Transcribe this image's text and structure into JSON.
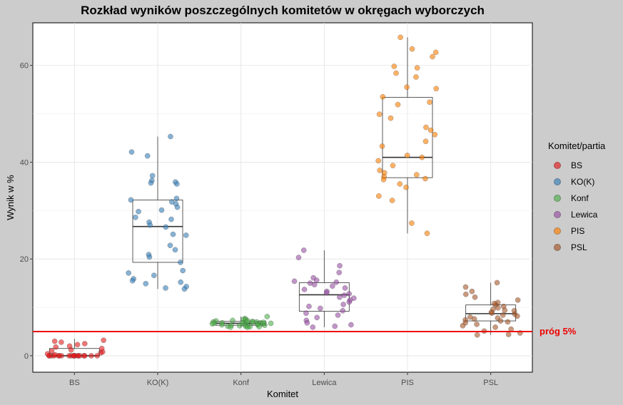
{
  "chart_data": {
    "type": "box",
    "title": "Rozkład wyników poszczególnych komitetów w okręgach wyborczych",
    "xlabel": "Komitet",
    "ylabel": "Wynik w %",
    "ylim": [
      -3.4,
      68.8
    ],
    "yticks": [
      0,
      20,
      40,
      60
    ],
    "grid": true,
    "legend_title": "Komitet/partia",
    "legend_position": "right",
    "threshold": {
      "value": 5,
      "label": "próg 5%",
      "color": "#ee0000"
    },
    "categories": [
      "BS",
      "KO(K)",
      "Konf",
      "Lewica",
      "PIS",
      "PSL"
    ],
    "series": [
      {
        "name": "BS",
        "color": "#e41a1c",
        "box": {
          "whisker_low": 0,
          "q1": 0,
          "median": 0,
          "q3": 1.5,
          "whisker_high": 3.5
        },
        "points": [
          0,
          0,
          0,
          0,
          0,
          0,
          0,
          0,
          0,
          0,
          0,
          0,
          0,
          0,
          0,
          0,
          0,
          0,
          0,
          0,
          0.2,
          0.4,
          0.6,
          0.8,
          1.0,
          1.2,
          1.5,
          1.8,
          2.0,
          2.3,
          2.5,
          2.8,
          3.0,
          3.2
        ]
      },
      {
        "name": "KO(K)",
        "color": "#377eb8",
        "box": {
          "whisker_low": 13.8,
          "q1": 19.3,
          "median": 26.7,
          "q3": 32.2,
          "whisker_high": 45.3
        },
        "points": [
          45.3,
          42.1,
          41.3,
          37.2,
          36.2,
          35.9,
          35.7,
          35.5,
          32.5,
          32.2,
          31.8,
          31.4,
          30.7,
          30.1,
          29.8,
          28.6,
          28.2,
          27.6,
          27.0,
          26.6,
          25.1,
          24.9,
          22.8,
          21.9,
          20.9,
          20.4,
          19.3,
          17.6,
          17.1,
          16.6,
          15.9,
          15.5,
          15.2,
          14.9,
          14.3,
          14.0,
          13.8
        ]
      },
      {
        "name": "Konf",
        "color": "#4daf4a",
        "box": {
          "whisker_low": 5.9,
          "q1": 6.3,
          "median": 6.7,
          "q3": 7.1,
          "whisker_high": 8.1
        },
        "points": [
          8.1,
          7.7,
          7.5,
          7.4,
          7.3,
          7.2,
          7.1,
          7.0,
          7.0,
          6.9,
          6.8,
          6.8,
          6.7,
          6.7,
          6.6,
          6.6,
          6.5,
          6.5,
          6.4,
          6.4,
          6.3,
          6.3,
          6.2,
          6.2,
          6.1,
          6.1,
          6.0,
          6.0,
          5.9,
          5.9,
          6.8,
          6.9,
          7.0,
          7.2
        ]
      },
      {
        "name": "Lewica",
        "color": "#984ea3",
        "box": {
          "whisker_low": 5.9,
          "q1": 9.2,
          "median": 12.6,
          "q3": 15.1,
          "whisker_high": 21.8
        },
        "points": [
          21.8,
          20.3,
          18.6,
          17.2,
          16.1,
          15.6,
          15.4,
          15.2,
          15.0,
          14.7,
          14.4,
          14.0,
          13.7,
          13.3,
          13.0,
          12.8,
          12.5,
          12.1,
          11.9,
          11.5,
          11.1,
          10.6,
          10.2,
          9.8,
          9.3,
          8.8,
          8.4,
          7.9,
          7.3,
          6.8,
          6.4,
          6.1,
          5.9
        ]
      },
      {
        "name": "PIS",
        "color": "#ff7f00",
        "box": {
          "whisker_low": 25.3,
          "q1": 36.8,
          "median": 41.0,
          "q3": 53.4,
          "whisker_high": 65.8
        },
        "points": [
          65.8,
          63.4,
          62.7,
          61.8,
          59.8,
          59.5,
          58.4,
          57.6,
          55.5,
          55.2,
          53.5,
          52.4,
          51.9,
          49.9,
          49.1,
          47.2,
          46.6,
          45.7,
          44.3,
          43.3,
          41.4,
          41.0,
          40.3,
          39.3,
          38.3,
          37.8,
          37.4,
          37.0,
          36.6,
          36.4,
          35.5,
          34.8,
          33.0,
          32.1,
          27.4,
          25.3
        ]
      },
      {
        "name": "PSL",
        "color": "#a65628",
        "box": {
          "whisker_low": 4.3,
          "q1": 7.2,
          "median": 8.7,
          "q3": 10.5,
          "whisker_high": 15.1
        },
        "points": [
          15.1,
          14.2,
          13.3,
          12.7,
          12.1,
          11.5,
          11.0,
          10.5,
          10.2,
          9.9,
          9.6,
          9.3,
          9.0,
          8.8,
          8.6,
          8.4,
          8.2,
          8.0,
          7.8,
          7.6,
          7.4,
          7.2,
          7.0,
          6.8,
          6.5,
          6.2,
          5.9,
          5.5,
          5.1,
          4.7,
          4.4,
          4.3,
          9.4,
          10.8
        ]
      }
    ]
  }
}
